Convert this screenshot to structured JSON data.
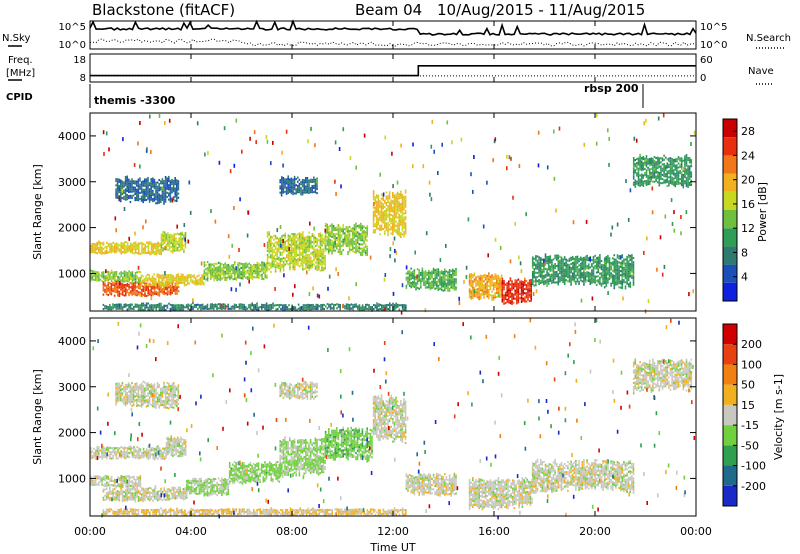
{
  "header": {
    "station": "Blackstone (fitACF)",
    "beam": "Beam 04",
    "date_range": "10/Aug/2015 - 11/Aug/2015"
  },
  "summary_panels": {
    "nsky_label": "N.Sky",
    "nsearch_label": "N.Search",
    "freq_label": "Freq.",
    "freq_unit": "[MHz]",
    "nave_label": "Nave",
    "cpid_label": "CPID",
    "nsky_ticks": [
      "10^5",
      "10^0"
    ],
    "nsearch_ticks": [
      "10^5",
      "10^0"
    ],
    "freq_ticks": [
      "18",
      "8"
    ],
    "nave_ticks": [
      "60",
      "0"
    ],
    "cpid_segments": [
      {
        "label": "themis -3300",
        "start_h": 0
      },
      {
        "label": "rbsp 200",
        "start_h": 21.8
      }
    ],
    "freq_series": {
      "x": [
        0,
        13,
        13,
        24
      ],
      "y": [
        10.3,
        10.3,
        13.8,
        13.8
      ]
    },
    "nave_series": {
      "x": [
        0,
        13,
        13,
        24
      ],
      "y": [
        13,
        13,
        13,
        13
      ]
    }
  },
  "xaxis": {
    "label": "Time UT",
    "ticks": [
      "00:00",
      "04:00",
      "08:00",
      "12:00",
      "16:00",
      "20:00",
      "00:00"
    ],
    "range_hours": [
      0,
      24
    ]
  },
  "chart_data": [
    {
      "type": "heatmap",
      "name": "power",
      "ylabel": "Slant Range [km]",
      "ylim": [
        180,
        4500
      ],
      "yticks": [
        "1000",
        "2000",
        "3000",
        "4000"
      ],
      "colorbar": {
        "label": "Power [dB]",
        "ticks": [
          "4",
          "8",
          "12",
          "16",
          "20",
          "24",
          "28"
        ],
        "range": [
          0,
          30
        ],
        "colors": [
          "#1020e0",
          "#1a50b8",
          "#2e7a6e",
          "#2f9d55",
          "#70c040",
          "#c8d820",
          "#f0b020",
          "#f07818",
          "#e83010",
          "#c80000"
        ]
      },
      "bands": [
        {
          "t0": 0.0,
          "t1": 2.8,
          "r0": 1380,
          "r1": 1680,
          "level": 18
        },
        {
          "t0": 2.8,
          "t1": 3.8,
          "r0": 1380,
          "r1": 1900,
          "level": 16
        },
        {
          "t0": 0.0,
          "t1": 2.0,
          "r0": 780,
          "r1": 1050,
          "level": 14
        },
        {
          "t0": 0.5,
          "t1": 3.5,
          "r0": 480,
          "r1": 800,
          "level": 24
        },
        {
          "t0": 2.0,
          "t1": 4.5,
          "r0": 700,
          "r1": 980,
          "level": 18
        },
        {
          "t0": 4.5,
          "t1": 7.0,
          "r0": 800,
          "r1": 1250,
          "level": 14
        },
        {
          "t0": 7.0,
          "t1": 9.3,
          "r0": 950,
          "r1": 1900,
          "level": 16
        },
        {
          "t0": 9.3,
          "t1": 11.0,
          "r0": 1300,
          "r1": 2100,
          "level": 14
        },
        {
          "t0": 11.2,
          "t1": 12.5,
          "r0": 1700,
          "r1": 2800,
          "level": 18
        },
        {
          "t0": 12.5,
          "t1": 14.5,
          "r0": 600,
          "r1": 1100,
          "level": 12
        },
        {
          "t0": 15.0,
          "t1": 16.3,
          "r0": 400,
          "r1": 1000,
          "level": 20
        },
        {
          "t0": 16.3,
          "t1": 17.5,
          "r0": 300,
          "r1": 900,
          "level": 26
        },
        {
          "t0": 17.5,
          "t1": 21.5,
          "r0": 650,
          "r1": 1400,
          "level": 10
        },
        {
          "t0": 21.5,
          "t1": 23.8,
          "r0": 2800,
          "r1": 3600,
          "level": 10
        },
        {
          "t0": 0.5,
          "t1": 12.5,
          "r0": 180,
          "r1": 330,
          "level": 8
        },
        {
          "t0": 1.0,
          "t1": 3.5,
          "r0": 2500,
          "r1": 3100,
          "level": 6
        },
        {
          "t0": 7.5,
          "t1": 9.0,
          "r0": 2700,
          "r1": 3100,
          "level": 6
        }
      ]
    },
    {
      "type": "heatmap",
      "name": "velocity",
      "ylabel": "Slant Range [km]",
      "ylim": [
        180,
        4500
      ],
      "yticks": [
        "1000",
        "2000",
        "3000",
        "4000"
      ],
      "colorbar": {
        "label": "Velocity [m s-1]",
        "ticks": [
          "200",
          "100",
          "50",
          "15",
          "-15",
          "-50",
          "-100",
          "-200"
        ],
        "range": [
          -250,
          250
        ],
        "colors": [
          "#1a2ac8",
          "#206a8c",
          "#30a050",
          "#70d040",
          "#c8c8c0",
          "#f0b020",
          "#f08010",
          "#e84010",
          "#d00000"
        ]
      },
      "bands": [
        {
          "t0": 0.0,
          "t1": 3.0,
          "r0": 1380,
          "r1": 1680,
          "level": 0
        },
        {
          "t0": 3.0,
          "t1": 3.8,
          "r0": 1380,
          "r1": 1900,
          "level": 0
        },
        {
          "t0": 0.0,
          "t1": 2.0,
          "r0": 780,
          "r1": 1050,
          "level": 0
        },
        {
          "t0": 0.5,
          "t1": 3.8,
          "r0": 480,
          "r1": 800,
          "level": 0
        },
        {
          "t0": 3.8,
          "t1": 5.5,
          "r0": 600,
          "r1": 1000,
          "level": -30
        },
        {
          "t0": 5.5,
          "t1": 7.5,
          "r0": 850,
          "r1": 1350,
          "level": -45
        },
        {
          "t0": 7.5,
          "t1": 9.3,
          "r0": 950,
          "r1": 1900,
          "level": -40
        },
        {
          "t0": 9.3,
          "t1": 11.2,
          "r0": 1300,
          "r1": 2100,
          "level": -60
        },
        {
          "t0": 11.2,
          "t1": 12.5,
          "r0": 1700,
          "r1": 2800,
          "level": 0
        },
        {
          "t0": 12.5,
          "t1": 14.5,
          "r0": 600,
          "r1": 1100,
          "level": 0
        },
        {
          "t0": 15.0,
          "t1": 17.5,
          "r0": 300,
          "r1": 1000,
          "level": 0
        },
        {
          "t0": 17.5,
          "t1": 21.5,
          "r0": 650,
          "r1": 1400,
          "level": 0
        },
        {
          "t0": 21.5,
          "t1": 23.8,
          "r0": 2800,
          "r1": 3600,
          "level": 0
        },
        {
          "t0": 0.5,
          "t1": 12.5,
          "r0": 180,
          "r1": 330,
          "level": 30
        },
        {
          "t0": 1.0,
          "t1": 3.5,
          "r0": 2500,
          "r1": 3100,
          "level": 0
        },
        {
          "t0": 7.5,
          "t1": 9.0,
          "r0": 2700,
          "r1": 3100,
          "level": 0
        }
      ]
    }
  ]
}
